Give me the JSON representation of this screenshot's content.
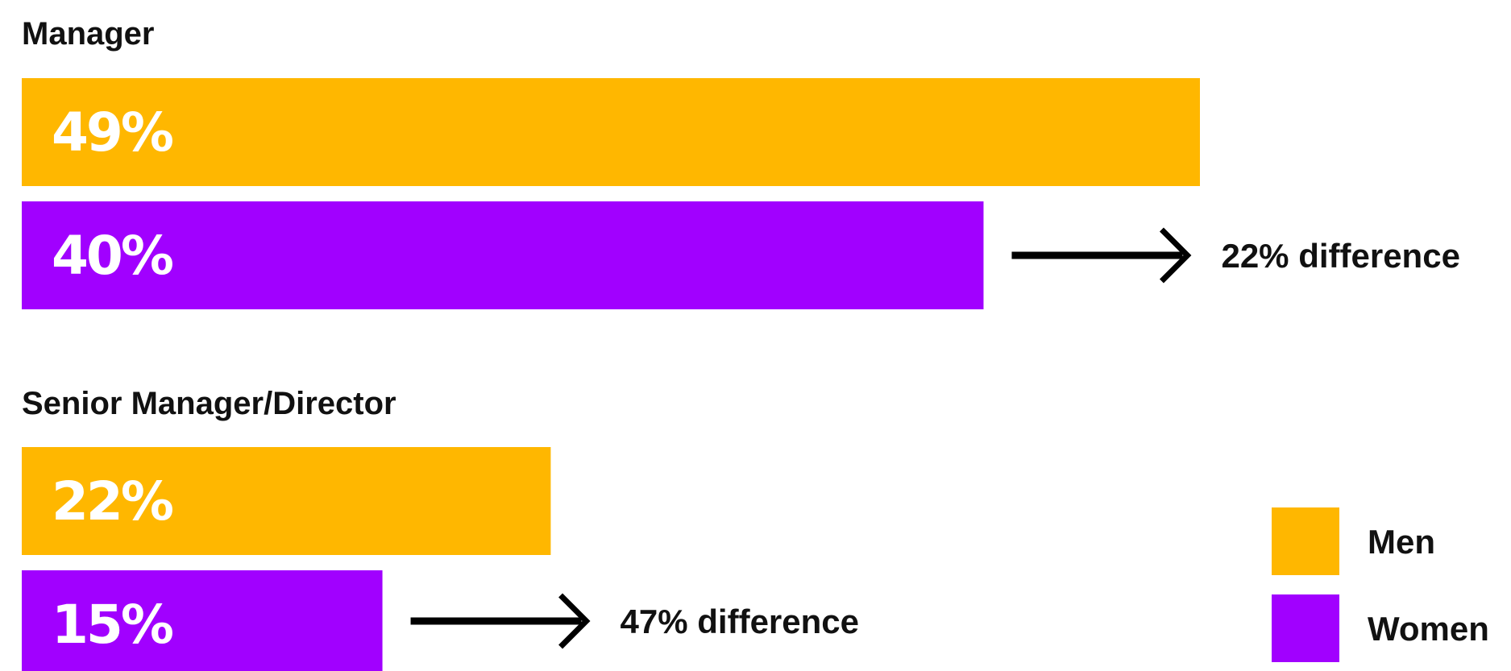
{
  "chart_data": {
    "type": "bar",
    "orientation": "horizontal",
    "colors": {
      "men": "#FFB700",
      "women": "#A100FF"
    },
    "legend": [
      {
        "key": "men",
        "label": "Men"
      },
      {
        "key": "women",
        "label": "Women"
      }
    ],
    "legend_position": "bottom-right",
    "grid": false,
    "groups": [
      {
        "title": "Manager",
        "bars": [
          {
            "series": "men",
            "value": 49,
            "label": "49%"
          },
          {
            "series": "women",
            "value": 40,
            "label": "40%"
          }
        ],
        "annotation": "22% difference"
      },
      {
        "title": "Senior Manager/Director",
        "bars": [
          {
            "series": "men",
            "value": 22,
            "label": "22%"
          },
          {
            "series": "women",
            "value": 15,
            "label": "15%"
          }
        ],
        "annotation": "47% difference"
      }
    ]
  }
}
